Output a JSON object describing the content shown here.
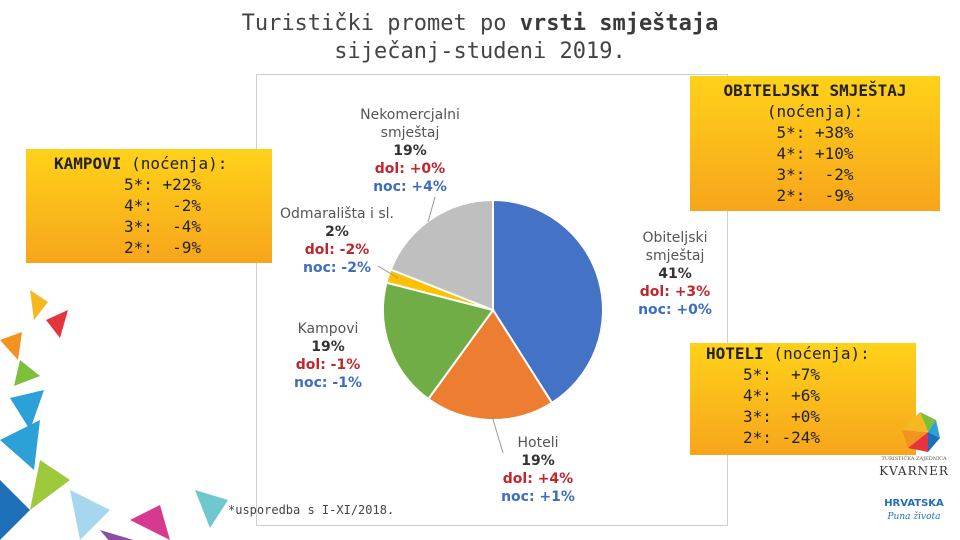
{
  "title": {
    "line1_prefix": "Turistički promet po ",
    "line1_bold": "vrsti smještaja",
    "line2": "siječanj-studeni 2019."
  },
  "chart_data": {
    "type": "pie",
    "slices": [
      {
        "name": "Obiteljski smještaj",
        "value": 41,
        "dol": "dol: +3%",
        "noc": "noc: +0%",
        "color": "#4472c4",
        "label_lines": [
          "Obiteljski",
          "smještaj"
        ]
      },
      {
        "name": "Hoteli",
        "value": 19,
        "dol": "dol: +4%",
        "noc": "noc: +1%",
        "color": "#ed7d31",
        "label_lines": [
          "Hoteli"
        ]
      },
      {
        "name": "Kampovi",
        "value": 19,
        "dol": "dol: -1%",
        "noc": "noc: -1%",
        "color": "#70ad47",
        "label_lines": [
          "Kampovi"
        ]
      },
      {
        "name": "Odmarališta i sl.",
        "value": 2,
        "dol": "dol: -2%",
        "noc": "noc: -2%",
        "color": "#ffc000",
        "label_lines": [
          "Odmarališta i sl."
        ]
      },
      {
        "name": "Nekomercjalni smještaj",
        "value": 19,
        "dol": "dol: +0%",
        "noc": "noc: +4%",
        "color": "#bfbfbf",
        "label_lines": [
          "Nekomercjalni",
          "smještaj"
        ]
      }
    ],
    "percent_labels": [
      "41%",
      "19%",
      "19%",
      "2%",
      "19%"
    ]
  },
  "kampovi_box": {
    "head": "KAMPOVI",
    "suffix": " (noćenja):",
    "lines": [
      "5*: +22%",
      "4*:  -2%",
      "3*:  -4%",
      "2*:  -9%"
    ]
  },
  "obitelj_box": {
    "head": "OBITELJSKI SMJEŠTAJ",
    "sub": "(noćenja):",
    "lines": [
      "5*: +38%",
      "4*: +10%",
      "3*:  -2%",
      "2*:  -9%"
    ]
  },
  "hoteli_box": {
    "head": "HOTELI",
    "suffix": " (noćenja):",
    "lines": [
      "5*:  +7%",
      "4*:  +6%",
      "3*:  +0%",
      "2*: -24%"
    ]
  },
  "footnote": "*usporedba s I-XI/2018.",
  "logo": {
    "brand1": "TURISTIČKA ZAJEDNICA",
    "brand2": "KVARNER",
    "brand3": "HRVATSKA",
    "brand4": "Puna života"
  }
}
